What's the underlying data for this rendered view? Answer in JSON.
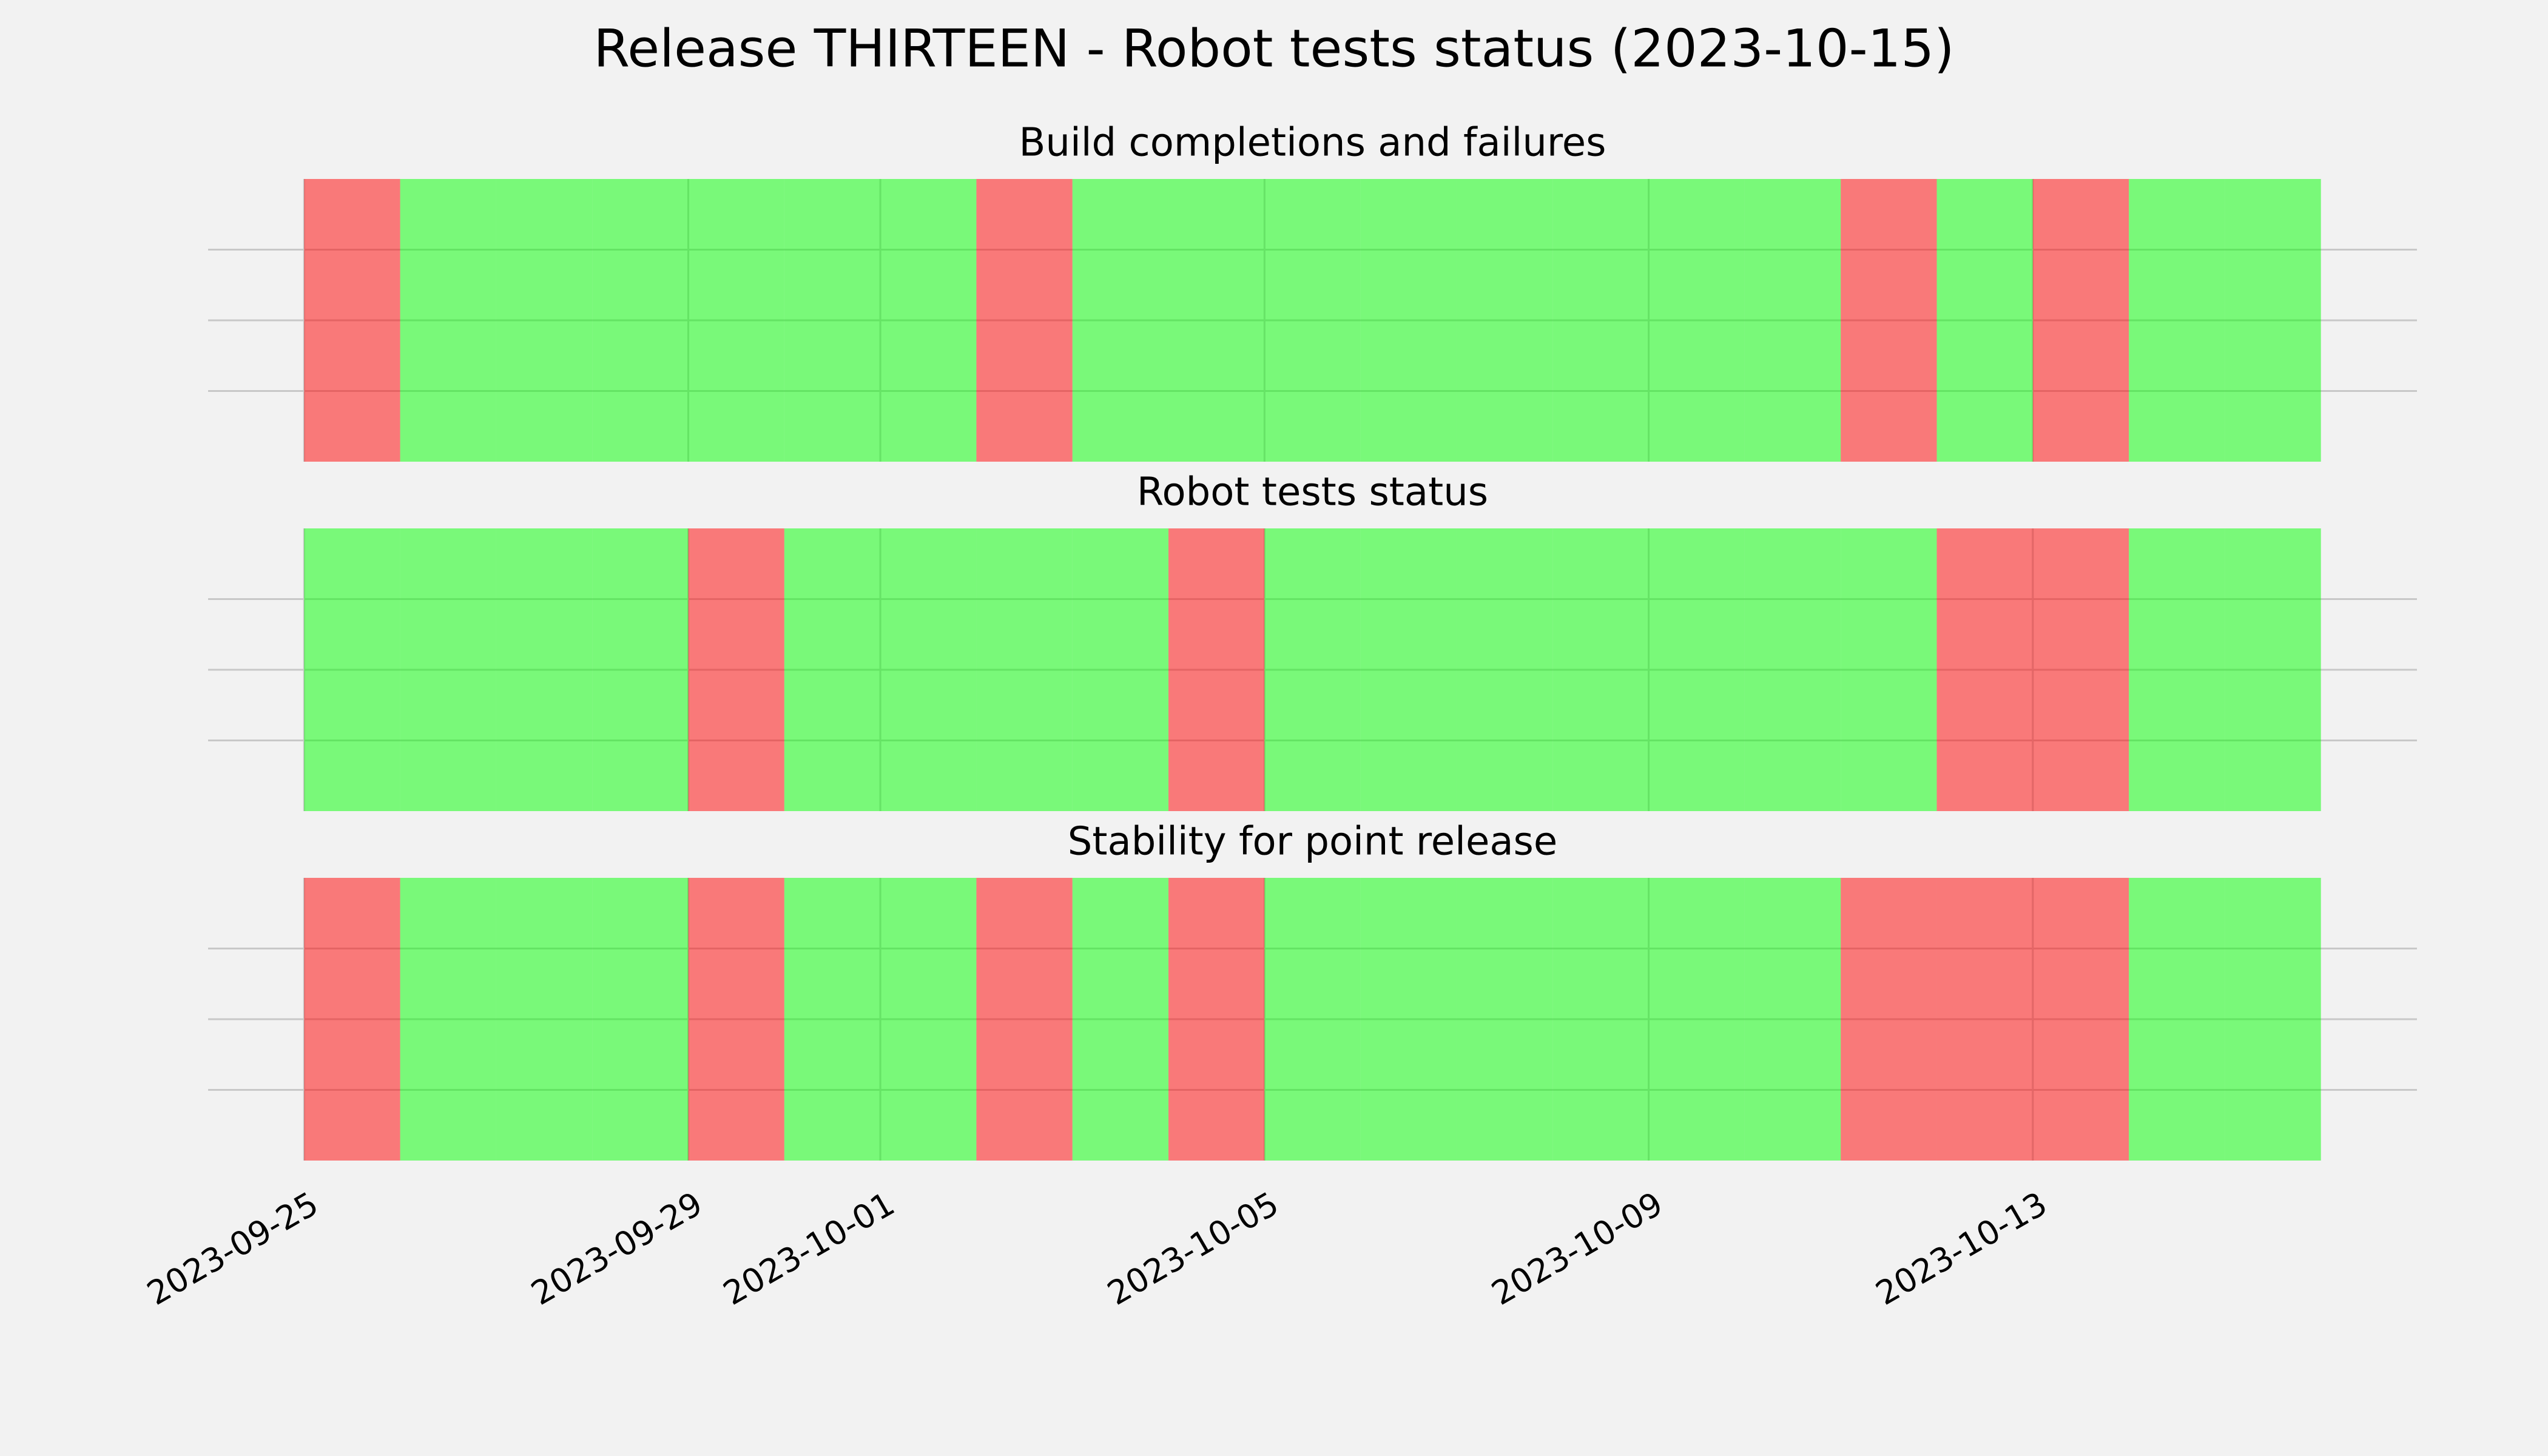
{
  "title": "Release THIRTEEN - Robot tests status (2023-10-15)",
  "chart_data": [
    {
      "type": "timeline",
      "title": "Build completions and failures",
      "x": [
        "2023-09-25",
        "2023-09-26",
        "2023-09-27",
        "2023-09-28",
        "2023-09-29",
        "2023-09-30",
        "2023-10-01",
        "2023-10-02",
        "2023-10-03",
        "2023-10-04",
        "2023-10-05",
        "2023-10-06",
        "2023-10-07",
        "2023-10-08",
        "2023-10-09",
        "2023-10-10",
        "2023-10-11",
        "2023-10-12",
        "2023-10-13",
        "2023-10-14",
        "2023-10-15"
      ],
      "values": [
        0,
        1,
        1,
        1,
        1,
        1,
        1,
        0,
        1,
        1,
        1,
        1,
        1,
        1,
        1,
        1,
        0,
        1,
        0,
        1,
        1
      ],
      "colors": [
        "#ff0000",
        "#00ff00"
      ],
      "xlim": [
        "2023-09-24",
        "2023-10-17"
      ],
      "xticks": [
        "2023-09-25",
        "2023-09-29",
        "2023-10-01",
        "2023-10-05",
        "2023-10-09",
        "2023-10-13"
      ],
      "ylim": [
        0,
        1
      ],
      "yticks": [
        0.25,
        0.5,
        0.75
      ],
      "grid": true
    },
    {
      "type": "timeline",
      "title": "Robot tests status",
      "x": [
        "2023-09-25",
        "2023-09-26",
        "2023-09-27",
        "2023-09-28",
        "2023-09-29",
        "2023-09-30",
        "2023-10-01",
        "2023-10-02",
        "2023-10-03",
        "2023-10-04",
        "2023-10-05",
        "2023-10-06",
        "2023-10-07",
        "2023-10-08",
        "2023-10-09",
        "2023-10-10",
        "2023-10-11",
        "2023-10-12",
        "2023-10-13",
        "2023-10-14",
        "2023-10-15"
      ],
      "values": [
        1,
        1,
        1,
        1,
        0,
        1,
        1,
        1,
        1,
        0,
        1,
        1,
        1,
        1,
        1,
        1,
        1,
        0,
        0,
        1,
        1
      ],
      "colors": [
        "#ff0000",
        "#00ff00"
      ],
      "xlim": [
        "2023-09-24",
        "2023-10-17"
      ],
      "xticks": [
        "2023-09-25",
        "2023-09-29",
        "2023-10-01",
        "2023-10-05",
        "2023-10-09",
        "2023-10-13"
      ],
      "ylim": [
        0,
        1
      ],
      "yticks": [
        0.25,
        0.5,
        0.75
      ],
      "grid": true
    },
    {
      "type": "timeline",
      "title": "Stability for point release",
      "x": [
        "2023-09-25",
        "2023-09-26",
        "2023-09-27",
        "2023-09-28",
        "2023-09-29",
        "2023-09-30",
        "2023-10-01",
        "2023-10-02",
        "2023-10-03",
        "2023-10-04",
        "2023-10-05",
        "2023-10-06",
        "2023-10-07",
        "2023-10-08",
        "2023-10-09",
        "2023-10-10",
        "2023-10-11",
        "2023-10-12",
        "2023-10-13",
        "2023-10-14",
        "2023-10-15"
      ],
      "values": [
        0,
        1,
        1,
        1,
        0,
        1,
        1,
        0,
        1,
        0,
        1,
        1,
        1,
        1,
        1,
        1,
        0,
        0,
        0,
        1,
        1
      ],
      "colors": [
        "#ff0000",
        "#00ff00"
      ],
      "xlim": [
        "2023-09-24",
        "2023-10-17"
      ],
      "xticks": [
        "2023-09-25",
        "2023-09-29",
        "2023-10-01",
        "2023-10-05",
        "2023-10-09",
        "2023-10-13"
      ],
      "ylim": [
        0,
        1
      ],
      "yticks": [
        0.25,
        0.5,
        0.75
      ],
      "grid": true,
      "show_xtick_labels": true
    }
  ]
}
